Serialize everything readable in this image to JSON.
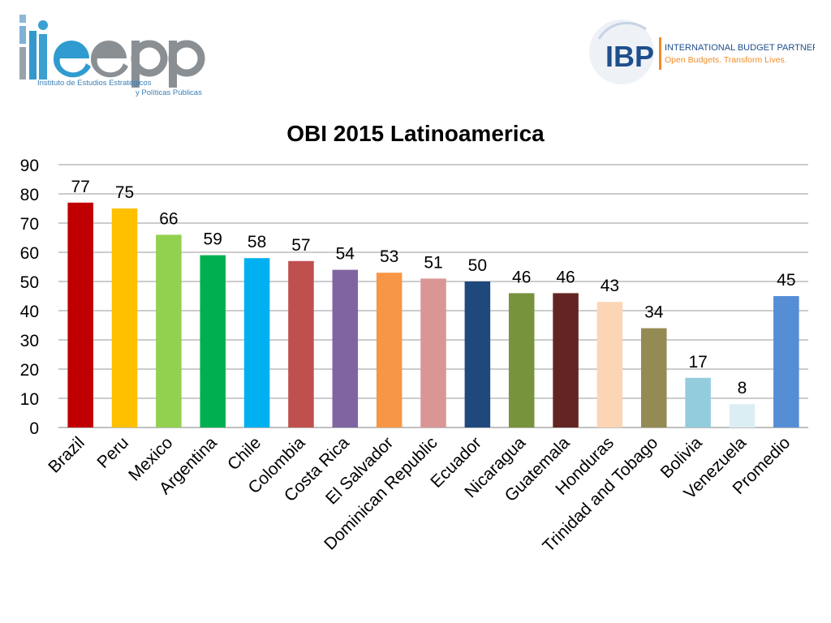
{
  "logos": {
    "left": {
      "name": "ieepp",
      "line1": "Instituto de Estudios Estratégicos",
      "line2": "y Políticas Públicas",
      "colors": {
        "accent": "#3399cc",
        "grey": "#8a8f94"
      }
    },
    "right": {
      "abbr": "IBP",
      "name": "INTERNATIONAL BUDGET PARTNERSHIP",
      "tagline": "Open Budgets. Transform Lives.",
      "colors": {
        "navy": "#1f4e8c",
        "orange": "#f28c28"
      }
    }
  },
  "chart_data": {
    "type": "bar",
    "title": "OBI 2015 Latinoamerica",
    "categories": [
      "Brazil",
      "Peru",
      "Mexico",
      "Argentina",
      "Chile",
      "Colombia",
      "Costa Rica",
      "El Salvador",
      "Dominican Republic",
      "Ecuador",
      "Nicaragua",
      "Guatemala",
      "Honduras",
      "Trinidad and Tobago",
      "Bolivia",
      "Venezuela",
      "Promedio"
    ],
    "values": [
      77,
      75,
      66,
      59,
      58,
      57,
      54,
      53,
      51,
      50,
      46,
      46,
      43,
      34,
      17,
      8,
      45
    ],
    "data_labels": [
      "77",
      "75",
      "66",
      "59",
      "58",
      "57",
      "54",
      "53",
      "51",
      "50",
      "46",
      "46",
      "43",
      "34",
      "17",
      "8",
      "45"
    ],
    "colors": [
      "#c00000",
      "#ffc000",
      "#92d050",
      "#00b050",
      "#00b0f0",
      "#c0504d",
      "#8064a2",
      "#f79646",
      "#d99694",
      "#1f497d",
      "#77933c",
      "#632523",
      "#fcd5b5",
      "#948a54",
      "#93cddd",
      "#dbeef4",
      "#558ed5"
    ],
    "ylim": [
      0,
      90
    ],
    "yticks": [
      0,
      10,
      20,
      30,
      40,
      50,
      60,
      70,
      80,
      90
    ],
    "grid": true,
    "legend": "none",
    "xlabel": "",
    "ylabel": ""
  }
}
